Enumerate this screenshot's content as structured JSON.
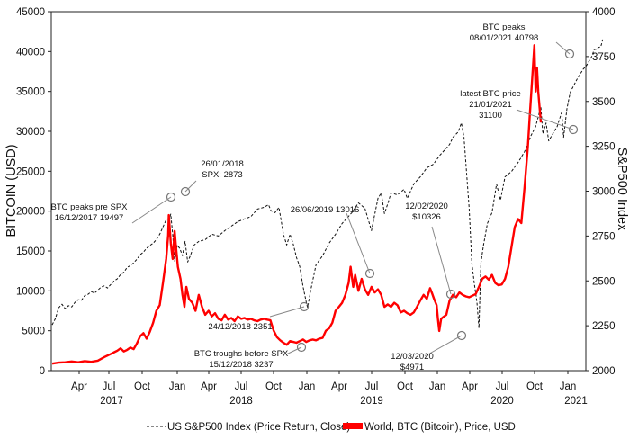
{
  "chart_data": {
    "type": "line",
    "x_axis": {
      "months": [
        "Apr",
        "Jul",
        "Oct",
        "Jan",
        "Apr",
        "Jul",
        "Oct",
        "Jan",
        "Apr",
        "Jul",
        "Oct",
        "Jan",
        "Apr",
        "Jul",
        "Oct",
        "Jan"
      ],
      "years": [
        "2017",
        "2018",
        "2019",
        "2020",
        "2021"
      ]
    },
    "y_left": {
      "label": "BITCOIN (USD)",
      "ylim": [
        0,
        45000
      ],
      "ticks": [
        "0",
        "5000",
        "10000",
        "15000",
        "20000",
        "25000",
        "30000",
        "35000",
        "40000",
        "45000"
      ]
    },
    "y_right": {
      "label": "S&P500 Index",
      "ylim": [
        2000,
        4000
      ],
      "ticks": [
        "2000",
        "2250",
        "2500",
        "2750",
        "3000",
        "3250",
        "3500",
        "3750",
        "4000"
      ]
    },
    "series": [
      {
        "name": "US S&P500 Index (Price Return, Close)",
        "axis": "right",
        "style": "dashed",
        "color": "#111111",
        "points": [
          [
            0,
            2255
          ],
          [
            0.05,
            2290
          ],
          [
            0.1,
            2350
          ],
          [
            0.15,
            2370
          ],
          [
            0.2,
            2345
          ],
          [
            0.25,
            2362
          ],
          [
            0.3,
            2355
          ],
          [
            0.35,
            2380
          ],
          [
            0.4,
            2395
          ],
          [
            0.45,
            2392
          ],
          [
            0.5,
            2418
          ],
          [
            0.55,
            2425
          ],
          [
            0.6,
            2440
          ],
          [
            0.65,
            2432
          ],
          [
            0.7,
            2448
          ],
          [
            0.75,
            2465
          ],
          [
            0.8,
            2472
          ],
          [
            0.85,
            2460
          ],
          [
            0.9,
            2480
          ],
          [
            0.95,
            2500
          ],
          [
            1.0,
            2512
          ],
          [
            1.05,
            2535
          ],
          [
            1.1,
            2548
          ],
          [
            1.15,
            2575
          ],
          [
            1.2,
            2585
          ],
          [
            1.25,
            2600
          ],
          [
            1.3,
            2620
          ],
          [
            1.35,
            2645
          ],
          [
            1.4,
            2660
          ],
          [
            1.45,
            2682
          ],
          [
            1.5,
            2697
          ],
          [
            1.55,
            2710
          ],
          [
            1.6,
            2730
          ],
          [
            1.65,
            2760
          ],
          [
            1.7,
            2800
          ],
          [
            1.75,
            2840
          ],
          [
            1.8,
            2850
          ],
          [
            1.82,
            2872
          ],
          [
            1.85,
            2760
          ],
          [
            1.88,
            2610
          ],
          [
            1.92,
            2700
          ],
          [
            1.96,
            2680
          ],
          [
            2.0,
            2640
          ],
          [
            2.04,
            2720
          ],
          [
            2.08,
            2605
          ],
          [
            2.12,
            2640
          ],
          [
            2.18,
            2700
          ],
          [
            2.25,
            2720
          ],
          [
            2.35,
            2730
          ],
          [
            2.45,
            2760
          ],
          [
            2.55,
            2750
          ],
          [
            2.65,
            2780
          ],
          [
            2.75,
            2805
          ],
          [
            2.85,
            2830
          ],
          [
            2.95,
            2845
          ],
          [
            3.05,
            2858
          ],
          [
            3.15,
            2900
          ],
          [
            3.25,
            2910
          ],
          [
            3.32,
            2925
          ],
          [
            3.36,
            2890
          ],
          [
            3.42,
            2880
          ],
          [
            3.48,
            2910
          ],
          [
            3.55,
            2760
          ],
          [
            3.6,
            2700
          ],
          [
            3.65,
            2760
          ],
          [
            3.7,
            2705
          ],
          [
            3.75,
            2630
          ],
          [
            3.8,
            2580
          ],
          [
            3.85,
            2470
          ],
          [
            3.9,
            2380
          ],
          [
            3.92,
            2351
          ],
          [
            3.97,
            2450
          ],
          [
            4.05,
            2590
          ],
          [
            4.15,
            2640
          ],
          [
            4.25,
            2710
          ],
          [
            4.35,
            2760
          ],
          [
            4.45,
            2820
          ],
          [
            4.55,
            2860
          ],
          [
            4.6,
            2880
          ],
          [
            4.7,
            2935
          ],
          [
            4.8,
            2905
          ],
          [
            4.9,
            2780
          ],
          [
            4.95,
            2870
          ],
          [
            5.0,
            2960
          ],
          [
            5.05,
            2990
          ],
          [
            5.1,
            2875
          ],
          [
            5.15,
            2930
          ],
          [
            5.2,
            2990
          ],
          [
            5.3,
            2980
          ],
          [
            5.4,
            3010
          ],
          [
            5.45,
            2960
          ],
          [
            5.55,
            3040
          ],
          [
            5.65,
            3080
          ],
          [
            5.75,
            3130
          ],
          [
            5.85,
            3150
          ],
          [
            5.95,
            3200
          ],
          [
            6.05,
            3240
          ],
          [
            6.1,
            3260
          ],
          [
            6.15,
            3300
          ],
          [
            6.23,
            3330
          ],
          [
            6.28,
            3380
          ],
          [
            6.32,
            3300
          ],
          [
            6.36,
            3100
          ],
          [
            6.4,
            2900
          ],
          [
            6.44,
            2600
          ],
          [
            6.48,
            2480
          ],
          [
            6.52,
            2380
          ],
          [
            6.55,
            2237
          ],
          [
            6.58,
            2600
          ],
          [
            6.62,
            2700
          ],
          [
            6.68,
            2820
          ],
          [
            6.75,
            2880
          ],
          [
            6.82,
            3040
          ],
          [
            6.88,
            2950
          ],
          [
            6.95,
            3080
          ],
          [
            7.05,
            3110
          ],
          [
            7.15,
            3160
          ],
          [
            7.25,
            3220
          ],
          [
            7.35,
            3310
          ],
          [
            7.42,
            3360
          ],
          [
            7.5,
            3470
          ],
          [
            7.53,
            3320
          ],
          [
            7.58,
            3380
          ],
          [
            7.62,
            3280
          ],
          [
            7.7,
            3330
          ],
          [
            7.75,
            3360
          ],
          [
            7.82,
            3440
          ],
          [
            7.85,
            3300
          ],
          [
            7.9,
            3460
          ],
          [
            7.95,
            3550
          ],
          [
            8.05,
            3620
          ],
          [
            8.15,
            3680
          ],
          [
            8.2,
            3700
          ],
          [
            8.28,
            3750
          ],
          [
            8.32,
            3790
          ],
          [
            8.35,
            3790
          ],
          [
            8.38,
            3800
          ],
          [
            8.42,
            3805
          ],
          [
            8.45,
            3845
          ]
        ]
      },
      {
        "name": "World, BTC (Bitcoin), Price, USD",
        "axis": "left",
        "style": "solid",
        "color": "#ff0000",
        "points": [
          [
            0,
            880
          ],
          [
            0.1,
            1000
          ],
          [
            0.2,
            1050
          ],
          [
            0.3,
            1150
          ],
          [
            0.4,
            1050
          ],
          [
            0.5,
            1200
          ],
          [
            0.6,
            1100
          ],
          [
            0.7,
            1250
          ],
          [
            0.8,
            1700
          ],
          [
            0.9,
            2100
          ],
          [
            1.0,
            2500
          ],
          [
            1.05,
            2800
          ],
          [
            1.1,
            2400
          ],
          [
            1.15,
            2600
          ],
          [
            1.2,
            2900
          ],
          [
            1.25,
            2700
          ],
          [
            1.3,
            3400
          ],
          [
            1.35,
            4300
          ],
          [
            1.4,
            4700
          ],
          [
            1.45,
            4000
          ],
          [
            1.5,
            4900
          ],
          [
            1.55,
            6000
          ],
          [
            1.6,
            7500
          ],
          [
            1.65,
            8200
          ],
          [
            1.7,
            11000
          ],
          [
            1.75,
            14000
          ],
          [
            1.78,
            17000
          ],
          [
            1.79,
            19497
          ],
          [
            1.82,
            16000
          ],
          [
            1.85,
            14000
          ],
          [
            1.88,
            17500
          ],
          [
            1.9,
            15500
          ],
          [
            1.93,
            13000
          ],
          [
            1.97,
            11500
          ],
          [
            2.0,
            9500
          ],
          [
            2.03,
            8000
          ],
          [
            2.06,
            10500
          ],
          [
            2.1,
            9000
          ],
          [
            2.15,
            8500
          ],
          [
            2.2,
            7500
          ],
          [
            2.25,
            9500
          ],
          [
            2.3,
            8000
          ],
          [
            2.35,
            7000
          ],
          [
            2.4,
            7500
          ],
          [
            2.45,
            6800
          ],
          [
            2.5,
            7200
          ],
          [
            2.55,
            6500
          ],
          [
            2.6,
            6300
          ],
          [
            2.65,
            7000
          ],
          [
            2.7,
            6400
          ],
          [
            2.75,
            6600
          ],
          [
            2.8,
            6200
          ],
          [
            2.85,
            6800
          ],
          [
            2.9,
            6500
          ],
          [
            2.95,
            6600
          ],
          [
            3.0,
            6400
          ],
          [
            3.05,
            6500
          ],
          [
            3.1,
            6300
          ],
          [
            3.15,
            6200
          ],
          [
            3.2,
            6400
          ],
          [
            3.25,
            6500
          ],
          [
            3.3,
            6400
          ],
          [
            3.35,
            6300
          ],
          [
            3.4,
            5000
          ],
          [
            3.45,
            4200
          ],
          [
            3.5,
            3800
          ],
          [
            3.55,
            3500
          ],
          [
            3.6,
            3237
          ],
          [
            3.65,
            3700
          ],
          [
            3.7,
            3600
          ],
          [
            3.75,
            3500
          ],
          [
            3.8,
            3700
          ],
          [
            3.85,
            3900
          ],
          [
            3.9,
            3600
          ],
          [
            3.95,
            3800
          ],
          [
            4.0,
            3900
          ],
          [
            4.05,
            3800
          ],
          [
            4.1,
            4000
          ],
          [
            4.15,
            4100
          ],
          [
            4.2,
            5000
          ],
          [
            4.25,
            5300
          ],
          [
            4.3,
            6000
          ],
          [
            4.35,
            7500
          ],
          [
            4.4,
            8000
          ],
          [
            4.45,
            8500
          ],
          [
            4.5,
            9500
          ],
          [
            4.55,
            11000
          ],
          [
            4.58,
            13016
          ],
          [
            4.62,
            10500
          ],
          [
            4.65,
            12000
          ],
          [
            4.7,
            10000
          ],
          [
            4.75,
            11500
          ],
          [
            4.8,
            10200
          ],
          [
            4.85,
            9500
          ],
          [
            4.9,
            10500
          ],
          [
            4.95,
            9800
          ],
          [
            5.0,
            10200
          ],
          [
            5.05,
            9500
          ],
          [
            5.1,
            8000
          ],
          [
            5.15,
            8300
          ],
          [
            5.2,
            8000
          ],
          [
            5.25,
            8500
          ],
          [
            5.3,
            8200
          ],
          [
            5.35,
            7300
          ],
          [
            5.4,
            7500
          ],
          [
            5.45,
            7200
          ],
          [
            5.5,
            7000
          ],
          [
            5.55,
            7300
          ],
          [
            5.6,
            8000
          ],
          [
            5.65,
            8800
          ],
          [
            5.7,
            9500
          ],
          [
            5.75,
            9000
          ],
          [
            5.8,
            10326
          ],
          [
            5.83,
            9700
          ],
          [
            5.86,
            9000
          ],
          [
            5.9,
            8200
          ],
          [
            5.92,
            6500
          ],
          [
            5.94,
            4971
          ],
          [
            5.97,
            6500
          ],
          [
            6.0,
            6700
          ],
          [
            6.05,
            7000
          ],
          [
            6.1,
            8800
          ],
          [
            6.15,
            9500
          ],
          [
            6.2,
            9200
          ],
          [
            6.25,
            9800
          ],
          [
            6.3,
            9500
          ],
          [
            6.35,
            9300
          ],
          [
            6.4,
            9200
          ],
          [
            6.45,
            9400
          ],
          [
            6.5,
            9600
          ],
          [
            6.55,
            10500
          ],
          [
            6.6,
            11500
          ],
          [
            6.65,
            11800
          ],
          [
            6.7,
            11400
          ],
          [
            6.75,
            12000
          ],
          [
            6.8,
            11000
          ],
          [
            6.85,
            10700
          ],
          [
            6.9,
            10800
          ],
          [
            6.95,
            11500
          ],
          [
            7.0,
            13000
          ],
          [
            7.05,
            15500
          ],
          [
            7.1,
            18000
          ],
          [
            7.15,
            19000
          ],
          [
            7.2,
            18500
          ],
          [
            7.25,
            23000
          ],
          [
            7.3,
            28000
          ],
          [
            7.33,
            32000
          ],
          [
            7.37,
            37000
          ],
          [
            7.4,
            40798
          ],
          [
            7.42,
            35000
          ],
          [
            7.44,
            38000
          ],
          [
            7.46,
            35000
          ],
          [
            7.5,
            31100
          ]
        ]
      }
    ],
    "annotations": [
      {
        "lines": [
          "BTC peaks pre SPX",
          "16/12/2017 19497"
        ]
      },
      {
        "lines": [
          "26/01/2018",
          "SPX: 2873"
        ]
      },
      {
        "lines": [
          "24/12/2018 2351"
        ]
      },
      {
        "lines": [
          "BTC troughs before SPX",
          "15/12/2018 3237"
        ]
      },
      {
        "lines": [
          "26/06/2019 13016"
        ]
      },
      {
        "lines": [
          "12/02/2020",
          "$10326"
        ]
      },
      {
        "lines": [
          "12/03/2020",
          "$4971"
        ]
      },
      {
        "lines": [
          "BTC peaks",
          "08/01/2021 40798"
        ]
      },
      {
        "lines": [
          "latest BTC price",
          "21/01/2021",
          "31100"
        ]
      }
    ],
    "legend": [
      {
        "label": "US S&P500 Index (Price Return, Close)"
      },
      {
        "label": "World, BTC (Bitcoin), Price, USD"
      }
    ]
  }
}
